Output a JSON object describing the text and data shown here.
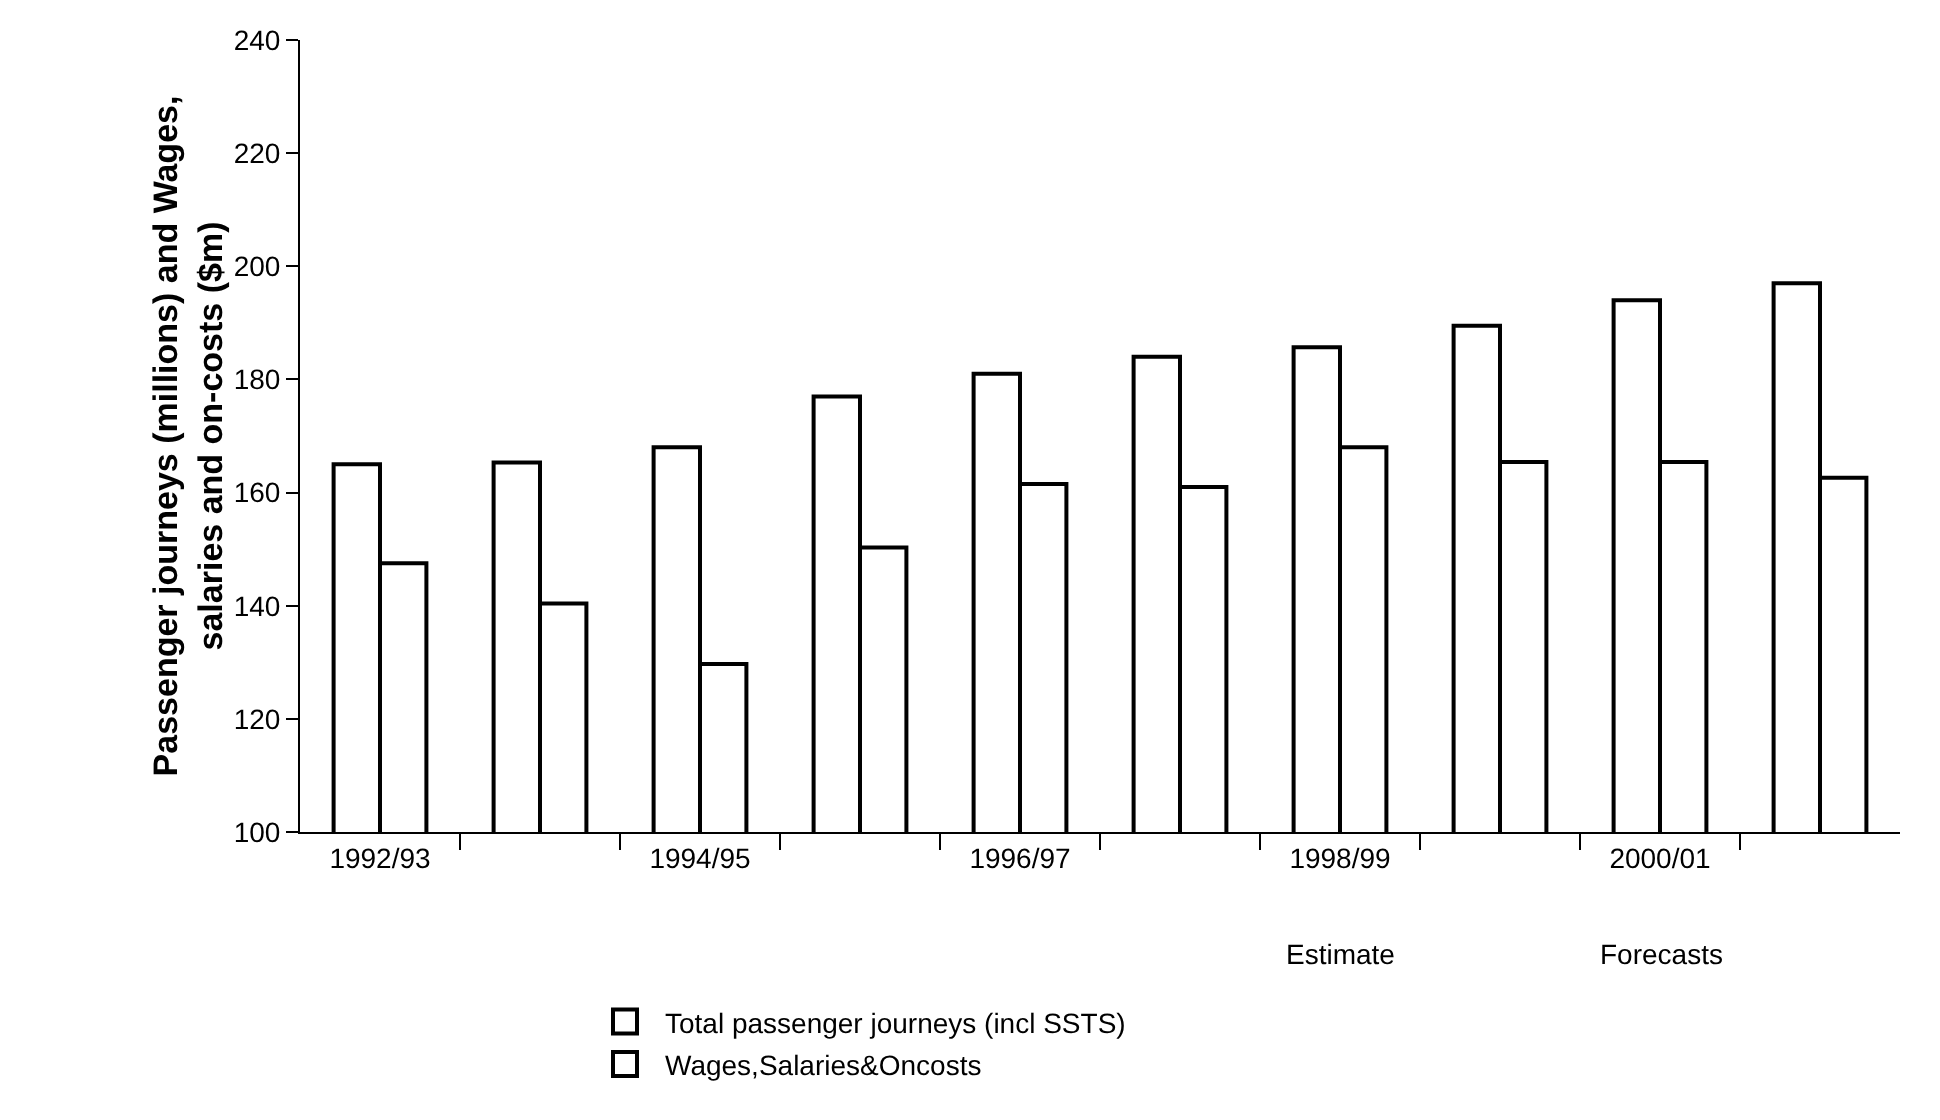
{
  "chart_data": {
    "type": "bar",
    "ylabel": "Passenger journeys (millions) and Wages,\nsalaries and on-costs ($m)",
    "categories": [
      "1992/93",
      null,
      "1994/95",
      null,
      "1996/97",
      null,
      "1998/99",
      null,
      "2000/01",
      null
    ],
    "series": [
      {
        "name": "Total passenger journeys (incl SSTS)",
        "color": "#ffffff",
        "values": [
          165,
          165.3,
          168,
          177,
          181,
          184,
          185.7,
          189.5,
          194,
          197
        ]
      },
      {
        "name": "Wages,Salaries&Oncosts",
        "color": "#ffffff",
        "values": [
          147.5,
          140.4,
          129.7,
          150.3,
          161.5,
          161,
          168,
          165.4,
          165.4,
          162.6
        ]
      }
    ],
    "ylim": [
      100,
      240
    ],
    "yticks": [
      100,
      120,
      140,
      160,
      180,
      200,
      220,
      240
    ],
    "grid": false,
    "legend": "bottom",
    "annotations": [
      "Estimate",
      "Forecasts"
    ]
  }
}
